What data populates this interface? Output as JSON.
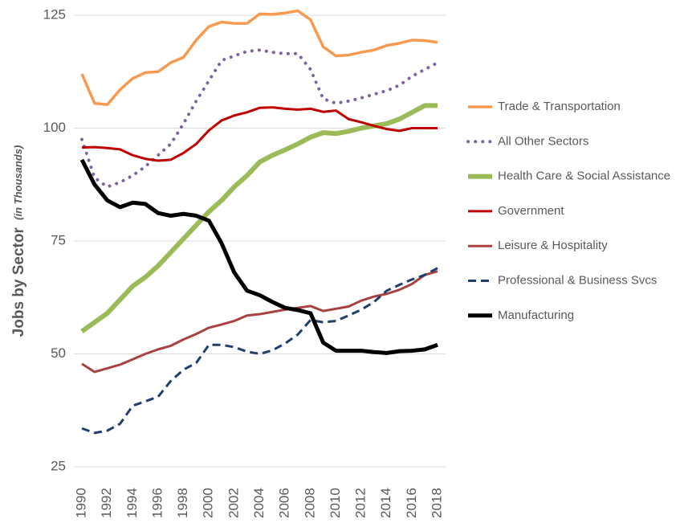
{
  "chart_data": {
    "type": "line",
    "y_label": "Jobs by Sector",
    "y_label_note": "(in Thousands)",
    "x": [
      1990,
      1991,
      1992,
      1993,
      1994,
      1995,
      1996,
      1997,
      1998,
      1999,
      2000,
      2001,
      2002,
      2003,
      2004,
      2005,
      2006,
      2007,
      2008,
      2009,
      2010,
      2011,
      2012,
      2013,
      2014,
      2015,
      2016,
      2017,
      2018
    ],
    "xlim": [
      1990,
      2018
    ],
    "xticks": [
      1990,
      1992,
      1994,
      1996,
      1998,
      2000,
      2002,
      2004,
      2006,
      2008,
      2010,
      2012,
      2014,
      2016,
      2018
    ],
    "ylim": [
      25,
      125
    ],
    "yticks": [
      25,
      50,
      75,
      100,
      125
    ],
    "grid": true,
    "legend": "right",
    "series": [
      {
        "name": "Trade & Transportation",
        "color": "#f79a4f",
        "width": 3.5,
        "dash": "solid",
        "values": [
          112,
          105.5,
          105.2,
          108.5,
          111,
          112.3,
          112.5,
          114.5,
          115.7,
          119.5,
          122.5,
          123.5,
          123.2,
          123.2,
          125.3,
          125.2,
          125.5,
          126,
          124,
          118,
          116,
          116.2,
          116.8,
          117.3,
          118.3,
          118.8,
          119.5,
          119.4,
          119
        ]
      },
      {
        "name": "All Other Sectors",
        "color": "#8064a2",
        "width": 4,
        "dash": "dotted",
        "values": [
          97.5,
          89,
          87,
          88,
          89.5,
          91.5,
          94,
          96.5,
          101,
          106,
          110.5,
          115,
          116,
          117,
          117.3,
          116.8,
          116.5,
          116.5,
          113,
          106.5,
          105.5,
          106,
          106.7,
          107.5,
          108.3,
          109.5,
          111.5,
          113,
          114.5
        ]
      },
      {
        "name": "Health Care & Social Assistance",
        "color": "#9bbb59",
        "width": 6,
        "dash": "solid",
        "values": [
          55,
          57,
          59,
          62,
          65,
          67,
          69.5,
          72.5,
          75.5,
          78.5,
          81.5,
          84,
          87,
          89.5,
          92.5,
          94,
          95.2,
          96.5,
          98,
          99,
          98.8,
          99.3,
          100,
          100.5,
          101,
          102,
          103.5,
          105,
          105
        ]
      },
      {
        "name": "Government",
        "color": "#c00000",
        "width": 3,
        "dash": "solid",
        "values": [
          95.7,
          95.8,
          95.6,
          95.3,
          94,
          93.2,
          92.8,
          93,
          94.5,
          96.5,
          99.5,
          101.7,
          102.8,
          103.5,
          104.5,
          104.6,
          104.3,
          104.1,
          104.3,
          103.6,
          103.9,
          102,
          101.3,
          100.5,
          99.8,
          99.4,
          100,
          100,
          100
        ]
      },
      {
        "name": "Leisure & Hospitality",
        "color": "#a9413f",
        "width": 3,
        "dash": "solid",
        "values": [
          47.8,
          46,
          46.8,
          47.6,
          48.8,
          50,
          51,
          51.8,
          53.2,
          54.4,
          55.8,
          56.5,
          57.3,
          58.5,
          58.8,
          59.3,
          59.8,
          60.2,
          60.6,
          59.5,
          60,
          60.5,
          61.8,
          62.7,
          63.3,
          64.2,
          65.5,
          67.5,
          68.3
        ]
      },
      {
        "name": "Professional & Business Svcs",
        "color": "#1f3f6e",
        "width": 3,
        "dash": "dashed",
        "values": [
          33.5,
          32.5,
          33,
          34.5,
          38.5,
          39.5,
          40.5,
          44,
          46.5,
          48,
          52,
          52,
          51.5,
          50.5,
          50,
          50.8,
          52.3,
          54.3,
          57.5,
          57,
          57.3,
          58.5,
          59.8,
          61.5,
          64,
          65.3,
          66.5,
          67.5,
          69
        ]
      },
      {
        "name": "Manufacturing",
        "color": "#000000",
        "width": 5,
        "dash": "solid",
        "values": [
          93,
          87.5,
          84,
          82.5,
          83.5,
          83.2,
          81.2,
          80.6,
          81,
          80.6,
          79.5,
          74.5,
          68,
          64,
          63,
          61.5,
          60.2,
          59.7,
          59,
          52.5,
          50.7,
          50.7,
          50.7,
          50.4,
          50.2,
          50.6,
          50.7,
          51,
          52
        ]
      }
    ]
  }
}
